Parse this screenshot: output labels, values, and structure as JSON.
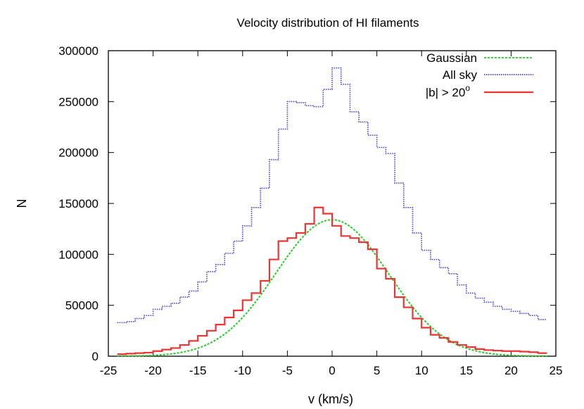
{
  "chart_data": {
    "type": "line",
    "title": "Velocity distribution of HI filaments",
    "xlabel": "v (km/s)",
    "ylabel": "N",
    "xlim": [
      -25,
      25
    ],
    "ylim": [
      0,
      300000
    ],
    "xticks": [
      -25,
      -20,
      -15,
      -10,
      -5,
      0,
      5,
      10,
      15,
      20,
      25
    ],
    "yticks": [
      0,
      50000,
      100000,
      150000,
      200000,
      250000,
      300000
    ],
    "grid": false,
    "legend_position": "top-right",
    "bin_edges": [
      -24,
      -23,
      -22,
      -21,
      -20,
      -19,
      -18,
      -17,
      -16,
      -15,
      -14,
      -13,
      -12,
      -11,
      -10,
      -9,
      -8,
      -7,
      -6,
      -5,
      -4,
      -3,
      -2,
      -1,
      0,
      1,
      2,
      3,
      4,
      5,
      6,
      7,
      8,
      9,
      10,
      11,
      12,
      13,
      14,
      15,
      16,
      17,
      18,
      19,
      20,
      21,
      22,
      23,
      24
    ],
    "series": [
      {
        "name": "Gaussian",
        "style": "dashed-curve",
        "color": "#22cc22",
        "amplitude": 134000,
        "mean": 0,
        "sigma": 6.3
      },
      {
        "name": "All sky",
        "style": "dotted-step",
        "color": "#4040e0",
        "values": [
          33000,
          34000,
          37000,
          40000,
          46000,
          49000,
          52000,
          58000,
          64000,
          73000,
          83000,
          90000,
          101000,
          113000,
          128000,
          146000,
          165000,
          193000,
          223000,
          250000,
          249000,
          246000,
          245000,
          262000,
          283000,
          267000,
          240000,
          230000,
          217000,
          205000,
          199000,
          170000,
          146000,
          121000,
          104000,
          95000,
          87000,
          81000,
          70000,
          62000,
          57000,
          53000,
          49000,
          46000,
          44000,
          42000,
          40000,
          36000
        ]
      },
      {
        "name": "|b| > 20°",
        "label_main": "|b| > 20",
        "label_sup": "o",
        "style": "solid-step",
        "color": "#ee3333",
        "values": [
          2000,
          2500,
          3000,
          3500,
          5000,
          6500,
          8000,
          11000,
          15000,
          20000,
          25000,
          31000,
          38000,
          45000,
          55000,
          62000,
          74000,
          95000,
          113000,
          116000,
          121000,
          130000,
          146000,
          140000,
          128000,
          118000,
          116000,
          112000,
          105000,
          86000,
          76000,
          58000,
          48000,
          37000,
          28000,
          21000,
          18000,
          14000,
          11000,
          9000,
          7000,
          6000,
          5500,
          5000,
          5000,
          4500,
          4000,
          3000
        ]
      }
    ]
  }
}
